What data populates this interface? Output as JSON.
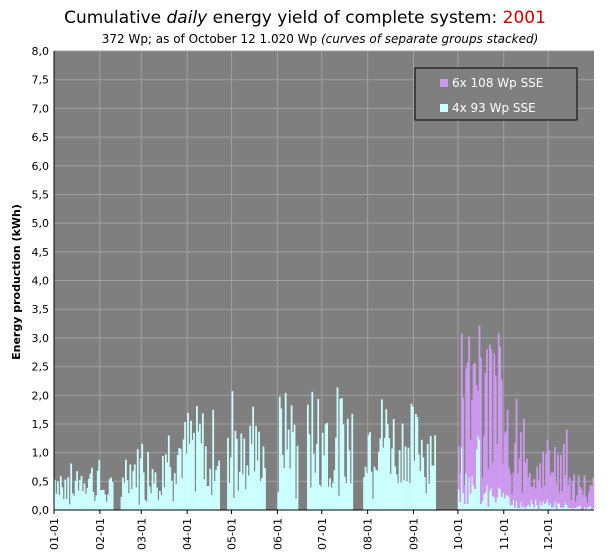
{
  "chart_data": {
    "type": "bar",
    "title_parts": {
      "before": "Cumulative ",
      "emph": "daily",
      "after": " energy yield of complete system: ",
      "year": "2001"
    },
    "subtitle_parts": {
      "main": "372 Wp; as of October 12 1.020 Wp ",
      "note": "(curves of separate groups stacked)"
    },
    "ylabel": "Energy production (kWh)",
    "ylim": [
      0,
      8
    ],
    "y_ticks": [
      "0,0",
      "0,5",
      "1,0",
      "1,5",
      "2,0",
      "2,5",
      "3,0",
      "3,5",
      "4,0",
      "4,5",
      "5,0",
      "5,5",
      "6,0",
      "6,5",
      "7,0",
      "7,5",
      "8,0"
    ],
    "x_ticks": [
      "01-01",
      "02-01",
      "03-01",
      "04-01",
      "05-01",
      "06-01",
      "07-01",
      "08-01",
      "09-01",
      "10-01",
      "11-01",
      "12-01"
    ],
    "grid": true,
    "legend_position": "top-right",
    "colors": {
      "background": "#7f7f7f",
      "grid": "#a0a0a0"
    },
    "series": [
      {
        "name": "6x 108 Wp SSE",
        "color": "#cc99ee"
      },
      {
        "name": "4x 93 Wp SSE",
        "color": "#ccffff"
      }
    ],
    "bands": [
      {
        "series": 1,
        "from": 0,
        "to": 14,
        "peak": 0.85
      },
      {
        "series": 1,
        "from": 14,
        "to": 31,
        "peak": 0.9
      },
      {
        "series": 1,
        "from": 31,
        "to": 45,
        "peak": 0.6
      },
      {
        "series": 1,
        "from": 45,
        "to": 59,
        "peak": 1.15
      },
      {
        "series": 1,
        "from": 59,
        "to": 75,
        "peak": 1.55
      },
      {
        "series": 1,
        "from": 75,
        "to": 90,
        "peak": 1.65
      },
      {
        "series": 1,
        "from": 90,
        "to": 105,
        "peak": 1.85
      },
      {
        "series": 1,
        "from": 105,
        "to": 120,
        "peak": 1.8
      },
      {
        "series": 1,
        "from": 120,
        "to": 135,
        "peak": 2.25
      },
      {
        "series": 1,
        "from": 135,
        "to": 151,
        "peak": 1.6
      },
      {
        "series": 1,
        "from": 151,
        "to": 166,
        "peak": 2.1
      },
      {
        "series": 1,
        "from": 166,
        "to": 181,
        "peak": 2.25
      },
      {
        "series": 1,
        "from": 181,
        "to": 196,
        "peak": 2.2
      },
      {
        "series": 1,
        "from": 196,
        "to": 212,
        "peak": 2.2
      },
      {
        "series": 1,
        "from": 212,
        "to": 227,
        "peak": 2.1
      },
      {
        "series": 1,
        "from": 227,
        "to": 243,
        "peak": 1.9
      },
      {
        "series": 1,
        "from": 243,
        "to": 258,
        "peak": 1.8
      },
      {
        "series": 1,
        "from": 258,
        "to": 273,
        "peak": 0.0
      },
      {
        "series": 1,
        "from": 273,
        "to": 288,
        "peak": 1.35
      },
      {
        "series": 0,
        "from": 273,
        "to": 288,
        "peak": 2.9
      },
      {
        "series": 1,
        "from": 288,
        "to": 304,
        "peak": 0.45
      },
      {
        "series": 0,
        "from": 288,
        "to": 304,
        "peak": 2.85
      },
      {
        "series": 1,
        "from": 304,
        "to": 319,
        "peak": 0.3
      },
      {
        "series": 0,
        "from": 304,
        "to": 319,
        "peak": 1.85
      },
      {
        "series": 1,
        "from": 319,
        "to": 334,
        "peak": 0.2
      },
      {
        "series": 0,
        "from": 319,
        "to": 334,
        "peak": 1.1
      },
      {
        "series": 1,
        "from": 334,
        "to": 349,
        "peak": 0.15
      },
      {
        "series": 0,
        "from": 334,
        "to": 349,
        "peak": 1.5
      },
      {
        "series": 1,
        "from": 349,
        "to": 365,
        "peak": 0.1
      },
      {
        "series": 0,
        "from": 349,
        "to": 365,
        "peak": 0.6
      }
    ],
    "gaps": [
      [
        40,
        44
      ],
      [
        112,
        116
      ],
      [
        143,
        150
      ],
      [
        165,
        170
      ],
      [
        202,
        208
      ],
      [
        258,
        272
      ]
    ]
  }
}
